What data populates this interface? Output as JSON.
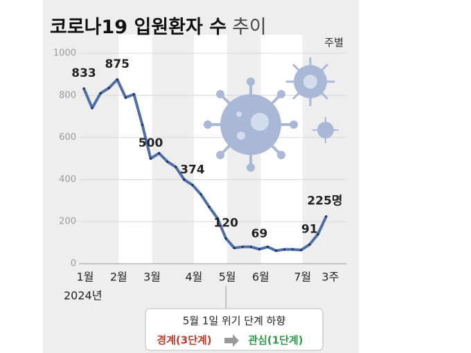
{
  "chart_data": {
    "type": "line",
    "title_parts": [
      "코로나19 입원환자 수",
      "추이"
    ],
    "unit": "주별",
    "year_label": "2024년",
    "categories": [
      "1월",
      null,
      null,
      null,
      "2월",
      null,
      null,
      null,
      "3월",
      null,
      null,
      null,
      null,
      "4월",
      null,
      null,
      null,
      "5월",
      null,
      null,
      null,
      "6월",
      null,
      null,
      null,
      null,
      "7월",
      null,
      null,
      "3주"
    ],
    "series": [
      {
        "name": "입원환자 수",
        "color": "#4d6ea8",
        "values": [
          833,
          740,
          810,
          835,
          875,
          790,
          805,
          660,
          500,
          525,
          485,
          460,
          400,
          374,
          330,
          270,
          215,
          120,
          75,
          80,
          80,
          69,
          80,
          62,
          68,
          68,
          65,
          91,
          140,
          225
        ],
        "value_labels": [
          "833",
          null,
          null,
          null,
          "875",
          null,
          null,
          null,
          "500",
          null,
          null,
          null,
          null,
          "374",
          null,
          null,
          null,
          "120",
          null,
          null,
          null,
          "69",
          null,
          null,
          null,
          null,
          null,
          "91",
          null,
          "225명"
        ]
      }
    ],
    "ylim": [
      0,
      1000
    ],
    "yticks": [
      0,
      200,
      400,
      600,
      800,
      1000
    ],
    "grid": true,
    "annotation": {
      "title": "5월 1일 위기 단계 하향",
      "from": "경계(3단계)",
      "to": "관심(1단계)"
    }
  }
}
